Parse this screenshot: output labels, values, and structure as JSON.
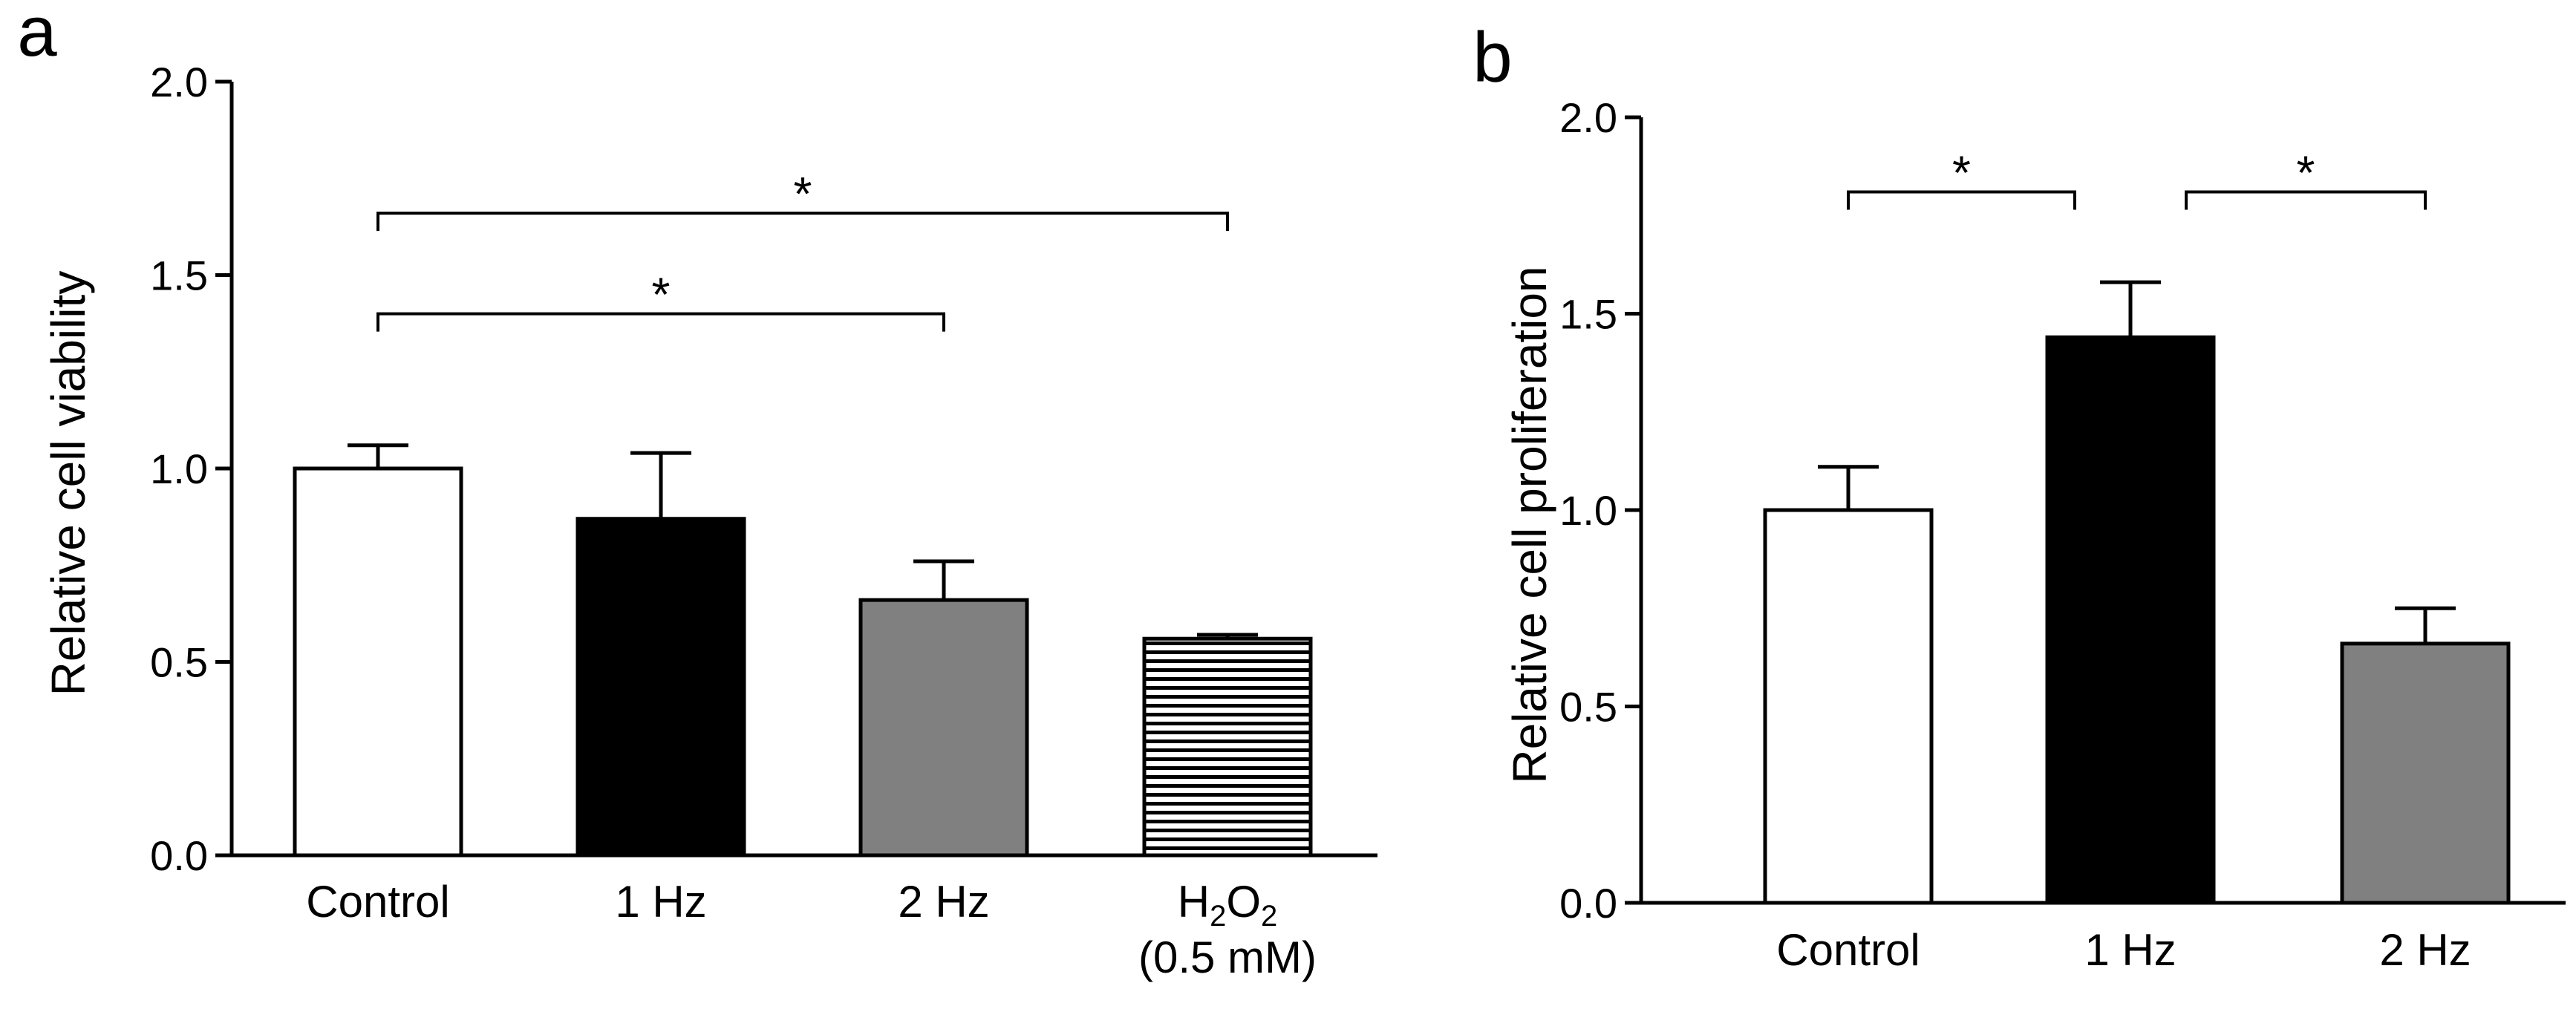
{
  "chart_data": [
    {
      "type": "bar",
      "panel_label": "a",
      "title": "",
      "xlabel": "",
      "ylabel": "Relative cell viability",
      "ylim": [
        0,
        2.0
      ],
      "yticks": [
        "0.0",
        "0.5",
        "1.0",
        "1.5",
        "2.0"
      ],
      "grid": false,
      "categories": [
        {
          "label": "Control",
          "fill": "white",
          "color": "#ffffff"
        },
        {
          "label": "1 Hz",
          "fill": "solid",
          "color": "#000000"
        },
        {
          "label": "2 Hz",
          "fill": "solid",
          "color": "#808080"
        },
        {
          "label_main": "H",
          "label_sub1": "2",
          "label_mid": "O",
          "label_sub2": "2",
          "label_line2": "(0.5 mM)",
          "fill": "horizontal-stripes",
          "color": "#ffffff"
        }
      ],
      "values": [
        1.0,
        0.87,
        0.66,
        0.56
      ],
      "errors": [
        0.06,
        0.17,
        0.1,
        0.01
      ],
      "significance": [
        {
          "from": 0,
          "to": 2,
          "label": "*",
          "level": 1.4
        },
        {
          "from": 0,
          "to": 3,
          "label": "*",
          "level": 1.66
        }
      ]
    },
    {
      "type": "bar",
      "panel_label": "b",
      "title": "",
      "xlabel": "",
      "ylabel": "Relative cell proliferation",
      "ylim": [
        0,
        2.0
      ],
      "yticks": [
        "0.0",
        "0.5",
        "1.0",
        "1.5",
        "2.0"
      ],
      "grid": false,
      "categories": [
        {
          "label": "Control",
          "fill": "white",
          "color": "#ffffff"
        },
        {
          "label": "1 Hz",
          "fill": "solid",
          "color": "#000000"
        },
        {
          "label": "2 Hz",
          "fill": "solid",
          "color": "#808080"
        }
      ],
      "values": [
        1.0,
        1.44,
        0.66
      ],
      "errors": [
        0.11,
        0.14,
        0.09
      ],
      "significance": [
        {
          "from": 0,
          "to": 1,
          "label": "*",
          "level": 1.81
        },
        {
          "from": 1,
          "to": 2,
          "label": "*",
          "level": 1.81
        }
      ]
    }
  ]
}
